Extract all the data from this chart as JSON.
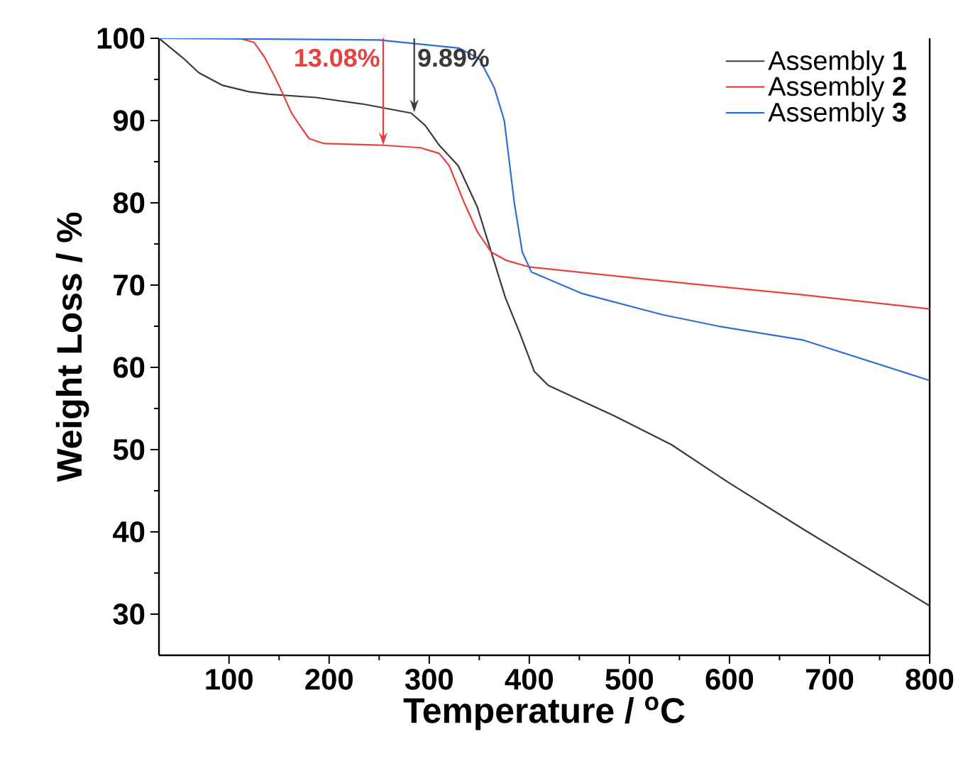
{
  "chart_data": {
    "type": "line",
    "xlabel": "Temperature / $^{o}$C",
    "ylabel": "Weight Loss / %",
    "xlim": [
      30,
      800
    ],
    "ylim": [
      25,
      100
    ],
    "xticks": [
      100,
      200,
      300,
      400,
      500,
      600,
      700,
      800
    ],
    "yticks": [
      30,
      40,
      50,
      60,
      70,
      80,
      90,
      100
    ],
    "legend": "top right",
    "grid": false,
    "marker": "none",
    "line_style": "solid",
    "annotations": [
      {
        "text": "13.08%",
        "x": 254,
        "y": 87
      },
      {
        "text": "9.89%",
        "x": 285,
        "y": 91
      }
    ],
    "series": [
      {
        "name": "Assembly **1**",
        "color": "#3a3a3a",
        "x": [
          30,
          40,
          55,
          70,
          93,
          120,
          140,
          187,
          234,
          282,
          296,
          310,
          329,
          348,
          362,
          376,
          391,
          405,
          419,
          485,
          542,
          599,
          674,
          800
        ],
        "values": [
          100,
          99,
          97.5,
          95.8,
          94.3,
          93.5,
          93.2,
          92.8,
          92,
          90.9,
          89.4,
          87,
          84.5,
          79.5,
          74,
          68.5,
          64,
          59.5,
          57.8,
          54.1,
          50.6,
          46,
          40.3,
          31
        ]
      },
      {
        "name": "Assembly **2**",
        "color": "#e8413c",
        "x": [
          30,
          110,
          125,
          135,
          145,
          154,
          162,
          169,
          180,
          195,
          254,
          291,
          310,
          320,
          335,
          348,
          362,
          377,
          400,
          533,
          674,
          800
        ],
        "values": [
          100,
          100,
          99.5,
          97.8,
          95.5,
          93.2,
          91,
          89.7,
          87.8,
          87.2,
          87,
          86.7,
          86,
          84.5,
          80,
          76.5,
          74,
          73,
          72.2,
          70.5,
          68.8,
          67.1
        ]
      },
      {
        "name": "Assembly **3**",
        "color": "#2a6fd6",
        "x": [
          30,
          250,
          330,
          350,
          365,
          375,
          385,
          393,
          402,
          452,
          533,
          589,
          674,
          800
        ],
        "values": [
          100,
          99.8,
          98.8,
          97.5,
          94,
          90,
          80,
          74,
          71.6,
          69,
          66.4,
          65,
          63.3,
          58.4
        ]
      }
    ]
  }
}
